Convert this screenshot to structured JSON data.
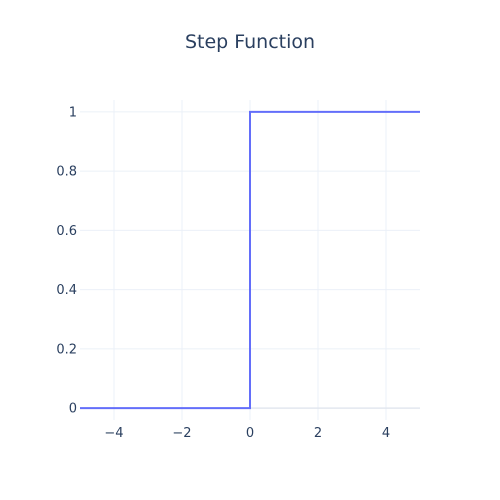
{
  "chart_data": {
    "type": "line",
    "title": "Step Function",
    "xlabel": "",
    "ylabel": "",
    "xlim": [
      -5,
      5
    ],
    "ylim": [
      -0.04,
      1.04
    ],
    "grid": true,
    "legend": "none",
    "x_ticks": [
      -4,
      -2,
      0,
      2,
      4
    ],
    "x_tick_labels": [
      "−4",
      "−2",
      "0",
      "2",
      "4"
    ],
    "y_ticks": [
      0,
      0.2,
      0.4,
      0.6,
      0.8,
      1
    ],
    "y_tick_labels": [
      "0",
      "0.2",
      "0.4",
      "0.6",
      "0.8",
      "1"
    ],
    "series": [
      {
        "color": "#636efa",
        "line_shape": "step",
        "points": [
          {
            "x": -5,
            "y": 0
          },
          {
            "x": 0,
            "y": 0
          },
          {
            "x": 0,
            "y": 1
          },
          {
            "x": 5,
            "y": 1
          }
        ]
      }
    ]
  }
}
